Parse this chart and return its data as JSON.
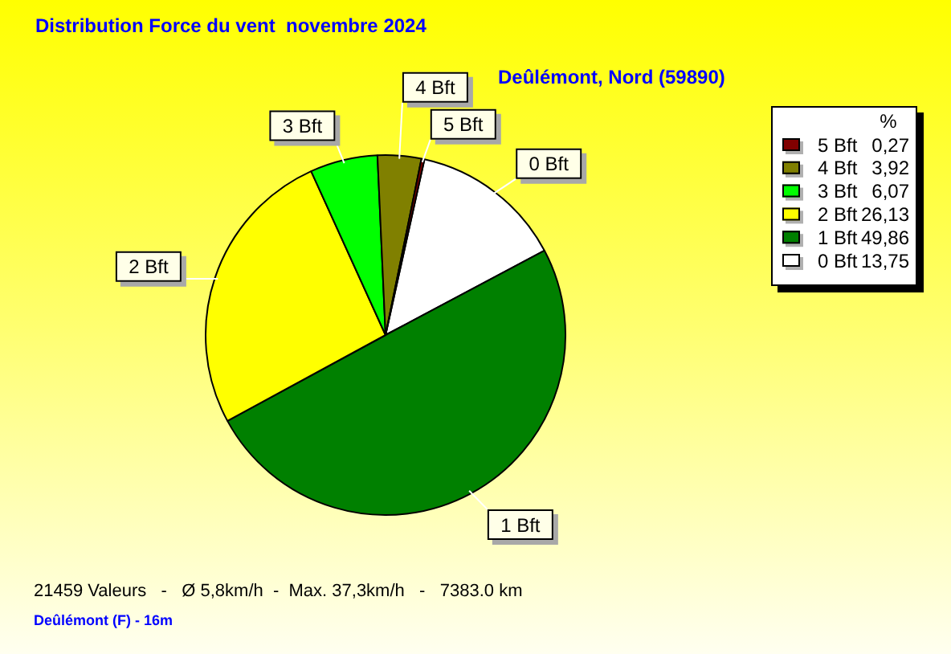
{
  "chart_data": {
    "type": "pie",
    "title": "Distribution Force du vent  novembre 2024",
    "subtitle": "Deûlémont, Nord (59890)",
    "categories": [
      "5 Bft",
      "4 Bft",
      "3 Bft",
      "2 Bft",
      "1 Bft",
      "0 Bft"
    ],
    "values": [
      0.27,
      3.92,
      6.07,
      26.13,
      49.86,
      13.75
    ],
    "value_labels": [
      "0,27",
      "3,92",
      "6,07",
      "26,13",
      "49,86",
      "13,75"
    ],
    "colors": [
      "#800000",
      "#808000",
      "#00ff00",
      "#ffff00",
      "#008000",
      "#ffffff"
    ],
    "legend": "top right",
    "legend_title": "%",
    "annotations": [
      "21459 Valeurs   -   Ø 5,8km/h  -  Max. 37,3km/h   -   7383.0 km",
      "Deûlémont (F) - 16m"
    ]
  }
}
